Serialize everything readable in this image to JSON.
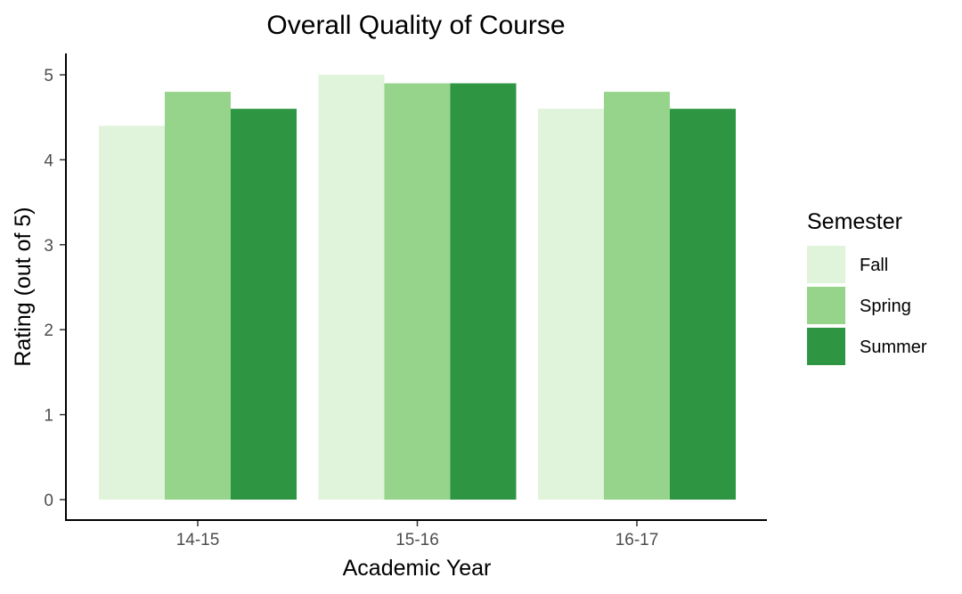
{
  "chart_data": {
    "type": "bar",
    "title": "Overall Quality of Course",
    "xlabel": "Academic Year",
    "ylabel": "Rating (out of 5)",
    "categories": [
      "14-15",
      "15-16",
      "16-17"
    ],
    "series": [
      {
        "name": "Fall",
        "color": "#e0f3db",
        "values": [
          4.4,
          5.0,
          4.6
        ]
      },
      {
        "name": "Spring",
        "color": "#96d38b",
        "values": [
          4.8,
          4.9,
          4.8
        ]
      },
      {
        "name": "Summer",
        "color": "#2e9643",
        "values": [
          4.6,
          4.9,
          4.6
        ]
      }
    ],
    "ylim": [
      0,
      5.25
    ],
    "yticks": [
      0,
      1,
      2,
      3,
      4,
      5
    ],
    "grid": false,
    "legend": {
      "title": "Semester",
      "position": "right"
    }
  }
}
